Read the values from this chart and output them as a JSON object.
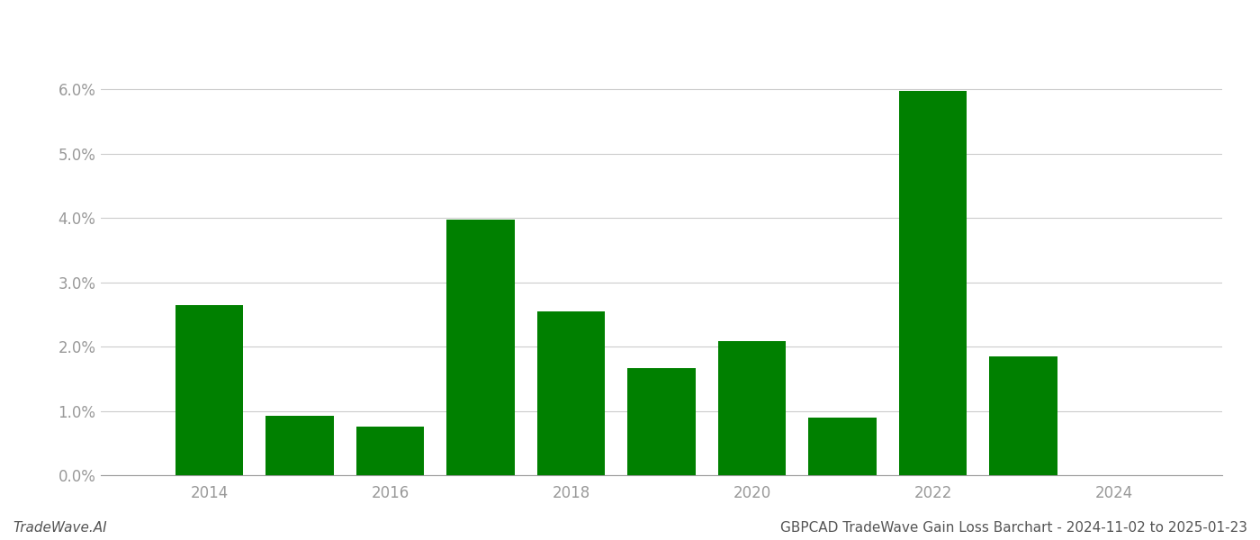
{
  "years": [
    2014,
    2015,
    2016,
    2017,
    2018,
    2019,
    2020,
    2021,
    2022,
    2023,
    2024
  ],
  "values": [
    0.0265,
    0.0092,
    0.0075,
    0.0397,
    0.0255,
    0.0167,
    0.0208,
    0.009,
    0.0597,
    0.0185,
    0.0
  ],
  "bar_color": "#008000",
  "title": "GBPCAD TradeWave Gain Loss Barchart - 2024-11-02 to 2025-01-23",
  "watermark": "TradeWave.AI",
  "ylim": [
    0,
    0.068
  ],
  "yticks": [
    0.0,
    0.01,
    0.02,
    0.03,
    0.04,
    0.05,
    0.06
  ],
  "xticks": [
    2014,
    2016,
    2018,
    2020,
    2022,
    2024
  ],
  "xlim": [
    2012.8,
    2025.2
  ],
  "background_color": "#ffffff",
  "grid_color": "#cccccc",
  "bar_width": 0.75,
  "title_fontsize": 11,
  "watermark_fontsize": 11,
  "tick_fontsize": 12,
  "tick_color": "#999999"
}
